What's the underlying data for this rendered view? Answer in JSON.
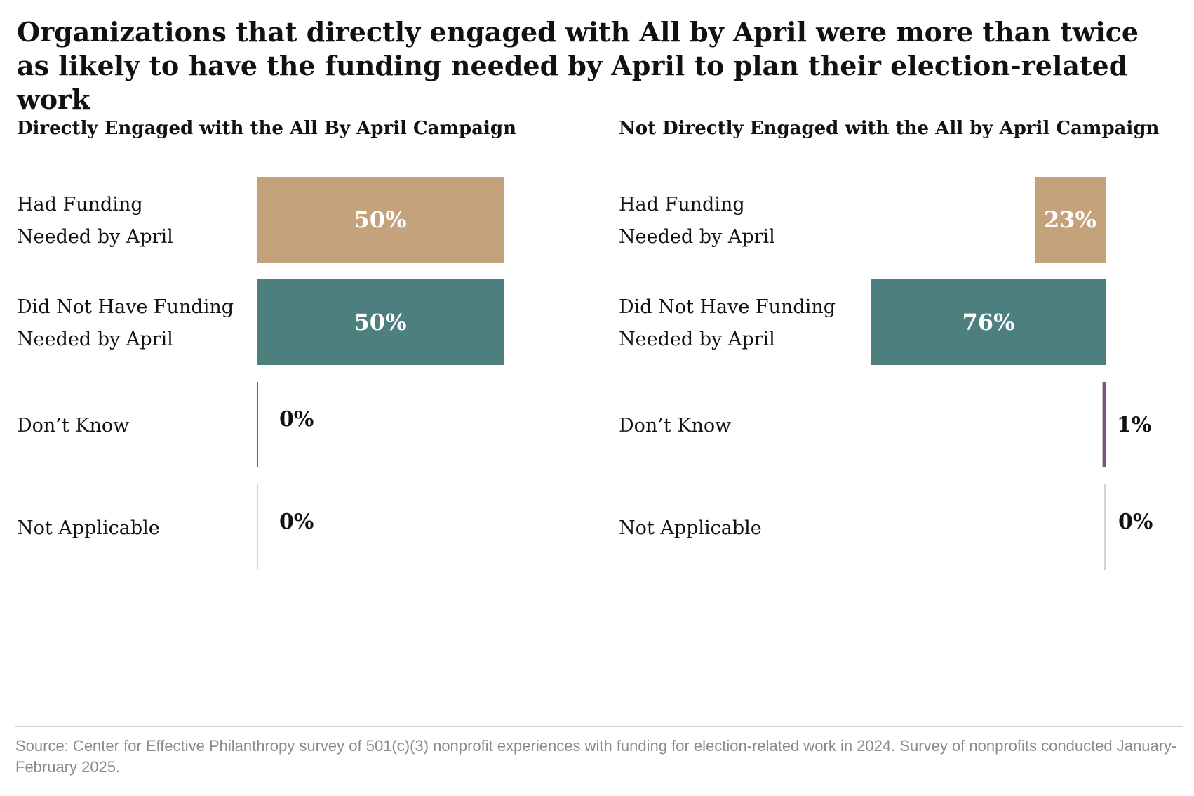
{
  "title": "Organizations that directly engaged with All by April were more than twice as likely to have the funding needed by April to plan their election-related work",
  "source": "Source: Center for Effective Philanthropy survey of 501(c)(3) nonprofit experiences with funding for election-related work in 2024. Survey of nonprofits conducted January-February 2025.",
  "colors": {
    "had_funding": "#c4a27c",
    "did_not_have": "#4e7f7f",
    "dont_know": "#845082",
    "not_applicable": "#d4d4d4"
  },
  "chart_data": [
    {
      "type": "bar",
      "orientation": "horizontal",
      "title": "Directly Engaged with the All By April Campaign",
      "categories": [
        [
          "Had Funding",
          "Needed by April"
        ],
        [
          "Did Not Have Funding",
          "Needed by April"
        ],
        [
          "Don’t Know"
        ],
        [
          "Not Applicable"
        ]
      ],
      "values": [
        50,
        50,
        0,
        0
      ],
      "value_labels": [
        "50%",
        "50%",
        "0%",
        "0%"
      ],
      "unit": "%",
      "xlim": [
        0,
        50
      ],
      "bar_anchor": "left"
    },
    {
      "type": "bar",
      "orientation": "horizontal",
      "title": "Not Directly Engaged with the All by April Campaign",
      "categories": [
        [
          "Had Funding",
          "Needed by April"
        ],
        [
          "Did Not Have Funding",
          "Needed by April"
        ],
        [
          "Don’t Know"
        ],
        [
          "Not Applicable"
        ]
      ],
      "values": [
        23,
        76,
        1,
        0
      ],
      "value_labels": [
        "23%",
        "76%",
        "1%",
        "0%"
      ],
      "unit": "%",
      "xlim": [
        0,
        76
      ],
      "bar_anchor": "right"
    }
  ]
}
